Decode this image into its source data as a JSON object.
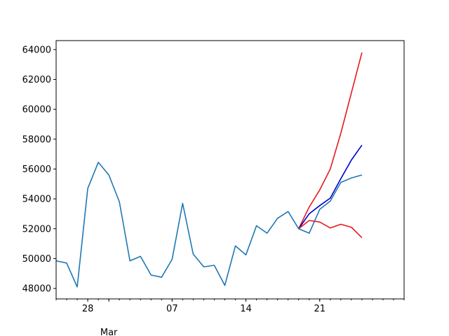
{
  "chart_data": {
    "type": "line",
    "title": "",
    "xlabel": "",
    "ylabel": "",
    "x_axis": {
      "type": "date",
      "range": [
        "2020-02-25",
        "2020-03-29"
      ],
      "tick_dates": [
        "2020-02-28",
        "2020-03-07",
        "2020-03-14",
        "2020-03-21"
      ],
      "tick_labels": [
        "28",
        "07",
        "14",
        "21"
      ],
      "minor_tick_dates": [
        "2020-03-01"
      ],
      "secondary_label": "Mar"
    },
    "ylim": [
      47300,
      64600
    ],
    "yticks": [
      48000,
      50000,
      52000,
      54000,
      56000,
      58000,
      60000,
      62000,
      64000
    ],
    "grid": false,
    "series": [
      {
        "color": "#1f77b4",
        "points": [
          [
            "2020-02-25",
            49850
          ],
          [
            "2020-02-26",
            49700
          ],
          [
            "2020-02-27",
            48100
          ],
          [
            "2020-02-28",
            54700
          ],
          [
            "2020-02-29",
            56450
          ],
          [
            "2020-03-01",
            55600
          ],
          [
            "2020-03-02",
            53800
          ],
          [
            "2020-03-03",
            49850
          ],
          [
            "2020-03-04",
            50150
          ],
          [
            "2020-03-05",
            48900
          ],
          [
            "2020-03-06",
            48750
          ],
          [
            "2020-03-07",
            49950
          ],
          [
            "2020-03-08",
            53700
          ],
          [
            "2020-03-09",
            50300
          ],
          [
            "2020-03-10",
            49450
          ],
          [
            "2020-03-11",
            49550
          ],
          [
            "2020-03-12",
            48200
          ],
          [
            "2020-03-13",
            50850
          ],
          [
            "2020-03-14",
            50250
          ],
          [
            "2020-03-15",
            52200
          ],
          [
            "2020-03-16",
            51700
          ],
          [
            "2020-03-17",
            52700
          ],
          [
            "2020-03-18",
            53150
          ],
          [
            "2020-03-19",
            52000
          ],
          [
            "2020-03-20",
            51700
          ],
          [
            "2020-03-21",
            53300
          ],
          [
            "2020-03-22",
            53850
          ],
          [
            "2020-03-23",
            55100
          ],
          [
            "2020-03-24",
            55400
          ],
          [
            "2020-03-25",
            55600
          ]
        ]
      },
      {
        "color": "#e41a1c",
        "points": [
          [
            "2020-03-19",
            52000
          ],
          [
            "2020-03-20",
            53450
          ],
          [
            "2020-03-21",
            54600
          ],
          [
            "2020-03-22",
            56000
          ],
          [
            "2020-03-23",
            58400
          ],
          [
            "2020-03-24",
            61100
          ],
          [
            "2020-03-25",
            63800
          ]
        ]
      },
      {
        "color": "#0000cc",
        "points": [
          [
            "2020-03-19",
            52000
          ],
          [
            "2020-03-20",
            53000
          ],
          [
            "2020-03-21",
            53550
          ],
          [
            "2020-03-22",
            54050
          ],
          [
            "2020-03-23",
            55350
          ],
          [
            "2020-03-24",
            56600
          ],
          [
            "2020-03-25",
            57600
          ]
        ]
      },
      {
        "color": "#e41a1c",
        "points": [
          [
            "2020-03-19",
            52000
          ],
          [
            "2020-03-20",
            52550
          ],
          [
            "2020-03-21",
            52450
          ],
          [
            "2020-03-22",
            52050
          ],
          [
            "2020-03-23",
            52300
          ],
          [
            "2020-03-24",
            52100
          ],
          [
            "2020-03-25",
            51400
          ]
        ]
      }
    ]
  }
}
